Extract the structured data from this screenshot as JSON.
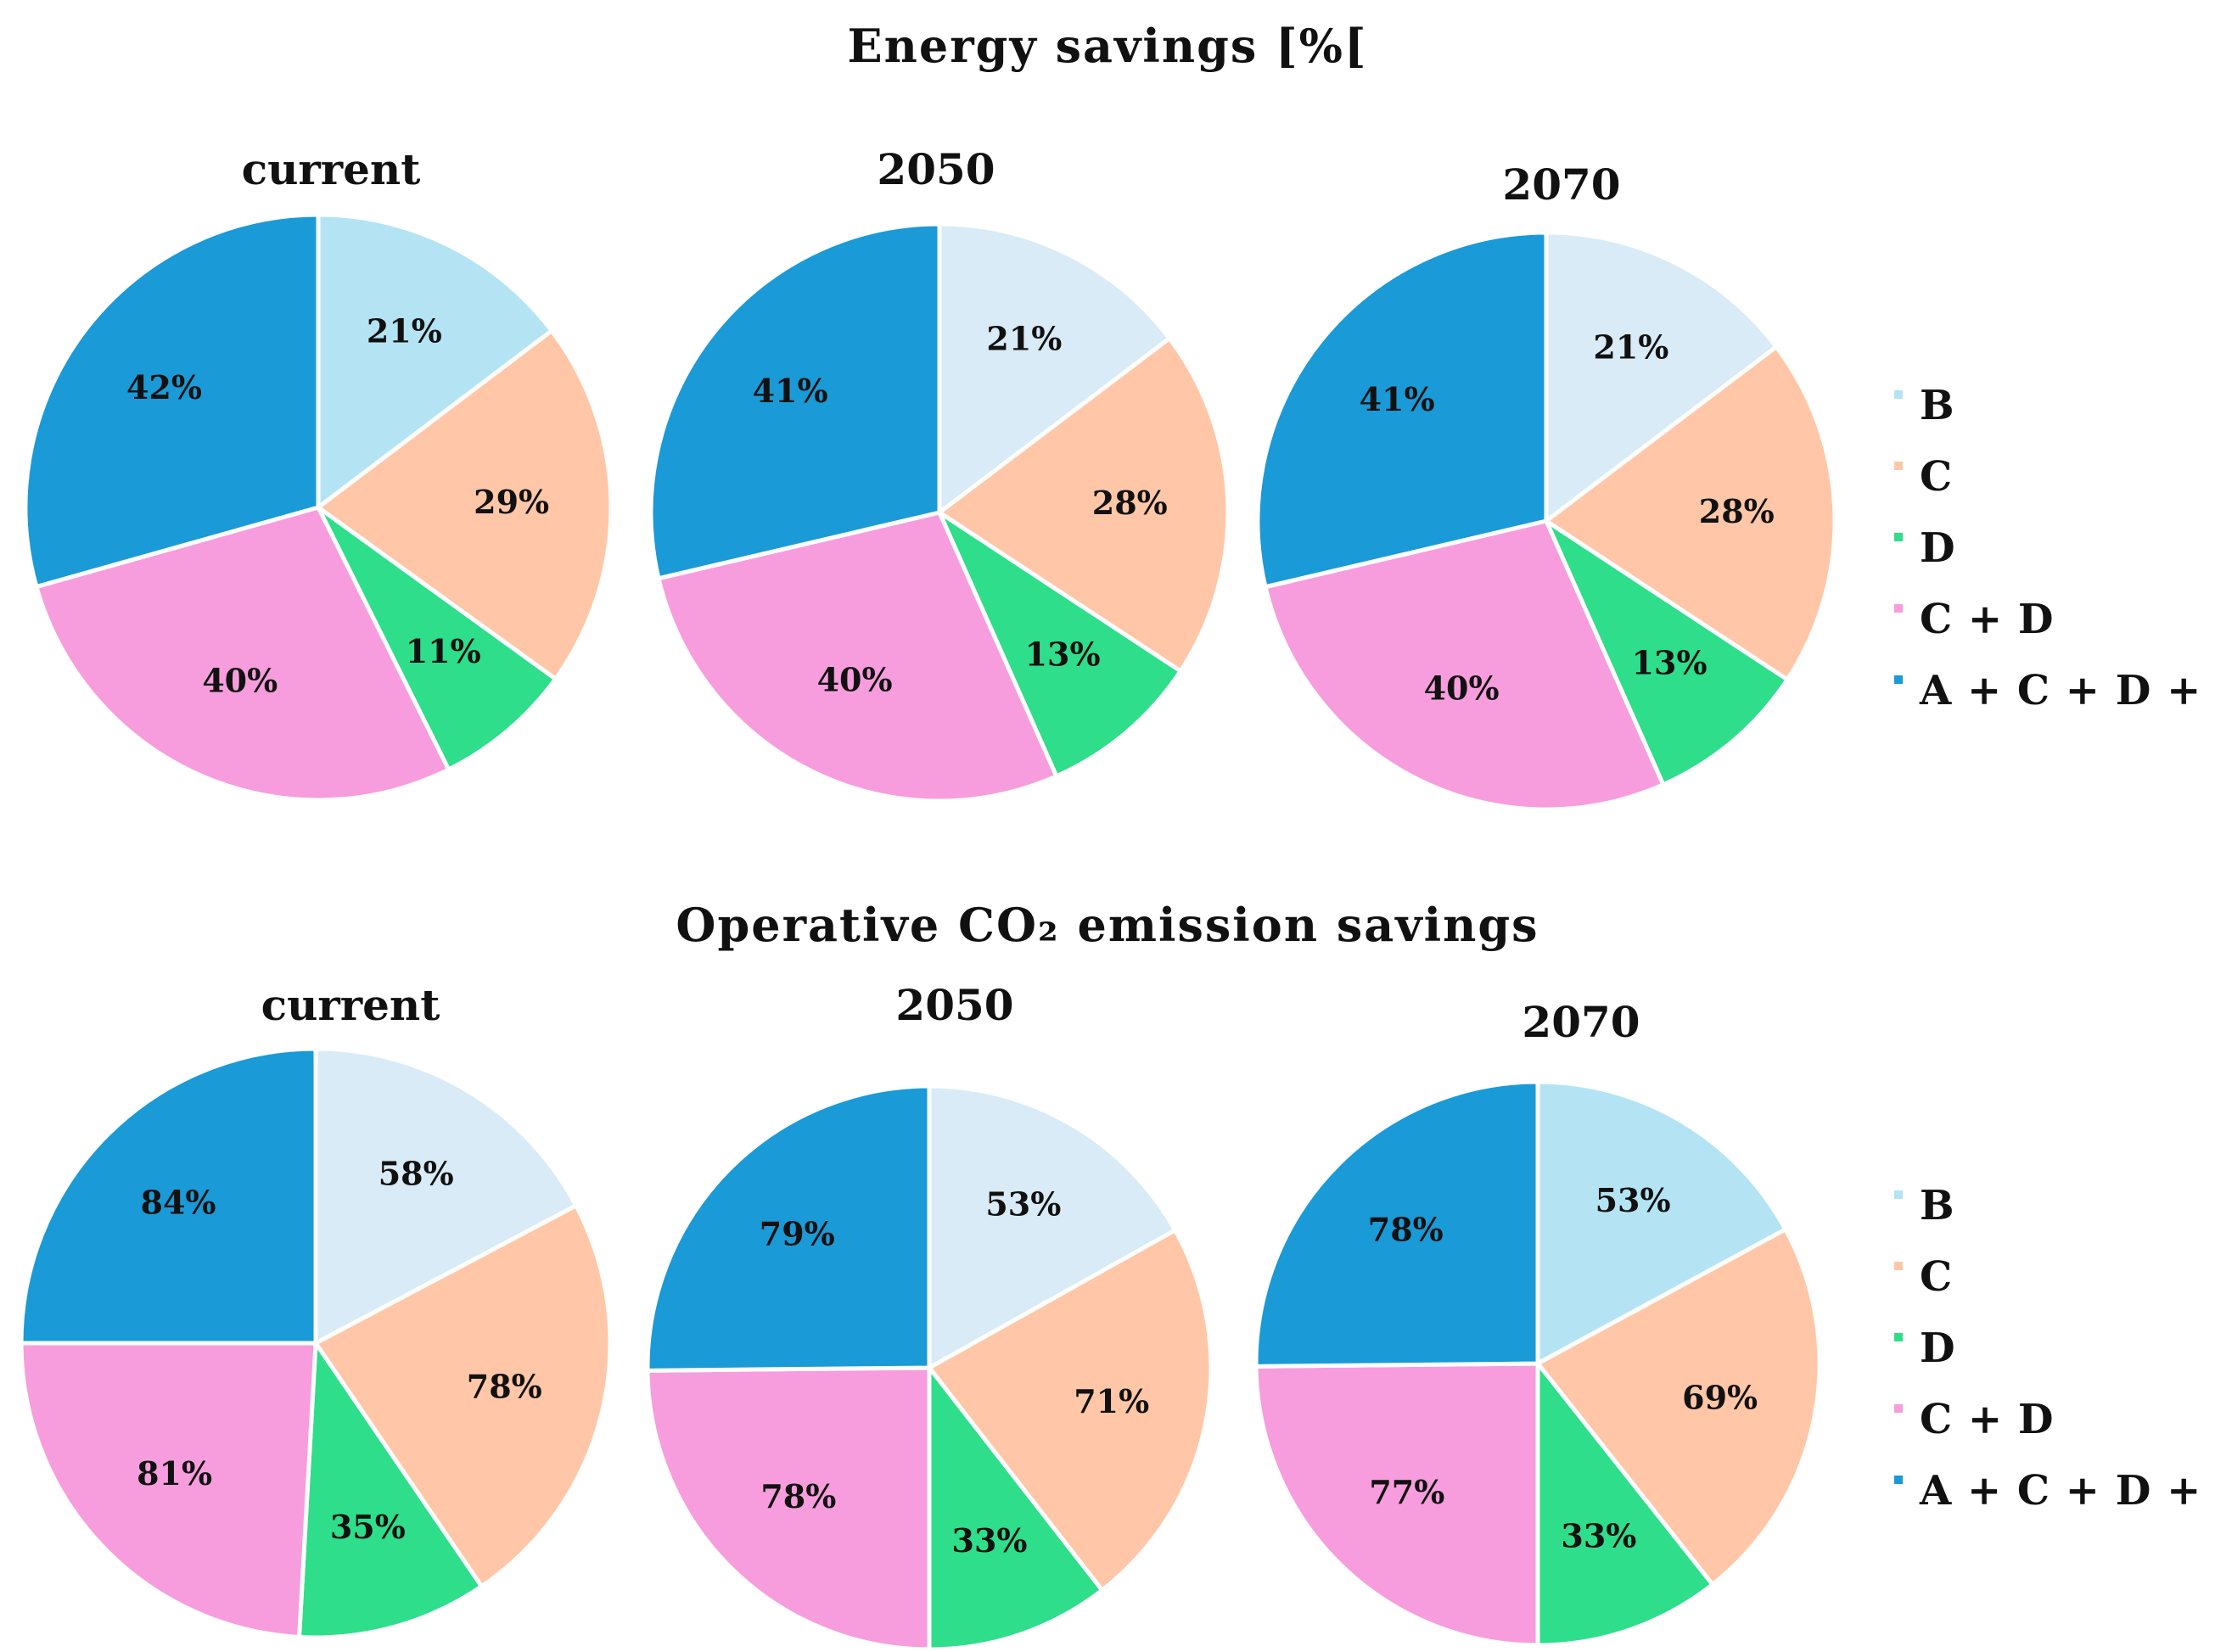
{
  "chart_data": [
    {
      "type": "pie",
      "section_title": "Energy savings [%[",
      "legend": [
        "B",
        "C",
        "D",
        "C + D",
        "A + C + D + E"
      ],
      "pies": [
        {
          "title": "current",
          "categories": [
            "B",
            "C",
            "D",
            "C + D",
            "A + C + D + E"
          ],
          "values": [
            21,
            29,
            11,
            40,
            42
          ],
          "labels": [
            "21%",
            "29%",
            "11%",
            "40%",
            "42%"
          ]
        },
        {
          "title": "2050",
          "categories": [
            "B",
            "C",
            "D",
            "C + D",
            "A + C + D + E"
          ],
          "values": [
            21,
            28,
            13,
            40,
            41
          ],
          "labels": [
            "21%",
            "28%",
            "13%",
            "40%",
            "41%"
          ]
        },
        {
          "title": "2070",
          "categories": [
            "B",
            "C",
            "D",
            "C + D",
            "A + C + D + E"
          ],
          "values": [
            21,
            28,
            13,
            40,
            41
          ],
          "labels": [
            "21%",
            "28%",
            "13%",
            "40%",
            "41%"
          ]
        }
      ]
    },
    {
      "type": "pie",
      "section_title": "Operative CO₂ emission savings",
      "legend": [
        "B",
        "C",
        "D",
        "C + D",
        "A + C + D + E"
      ],
      "pies": [
        {
          "title": "current",
          "categories": [
            "B",
            "C",
            "D",
            "C + D",
            "A + C + D + E"
          ],
          "values": [
            58,
            78,
            35,
            81,
            84
          ],
          "labels": [
            "58%",
            "78%",
            "35%",
            "81%",
            "84%"
          ]
        },
        {
          "title": "2050",
          "categories": [
            "B",
            "C",
            "D",
            "C + D",
            "A + C + D + E"
          ],
          "values": [
            53,
            71,
            33,
            78,
            79
          ],
          "labels": [
            "53%",
            "71%",
            "33%",
            "78%",
            "79%"
          ]
        },
        {
          "title": "2070",
          "categories": [
            "B",
            "C",
            "D",
            "C + D",
            "A + C + D + E"
          ],
          "values": [
            53,
            69,
            33,
            77,
            78
          ],
          "labels": [
            "53%",
            "69%",
            "33%",
            "77%",
            "78%"
          ]
        }
      ]
    }
  ],
  "colors": {
    "series_light": [
      "#d8ebf6",
      "#ffc7a8",
      "#2ede8a",
      "#f79ddd",
      "#1a9ad6"
    ],
    "series_alt_B": "#b4e4f4"
  }
}
